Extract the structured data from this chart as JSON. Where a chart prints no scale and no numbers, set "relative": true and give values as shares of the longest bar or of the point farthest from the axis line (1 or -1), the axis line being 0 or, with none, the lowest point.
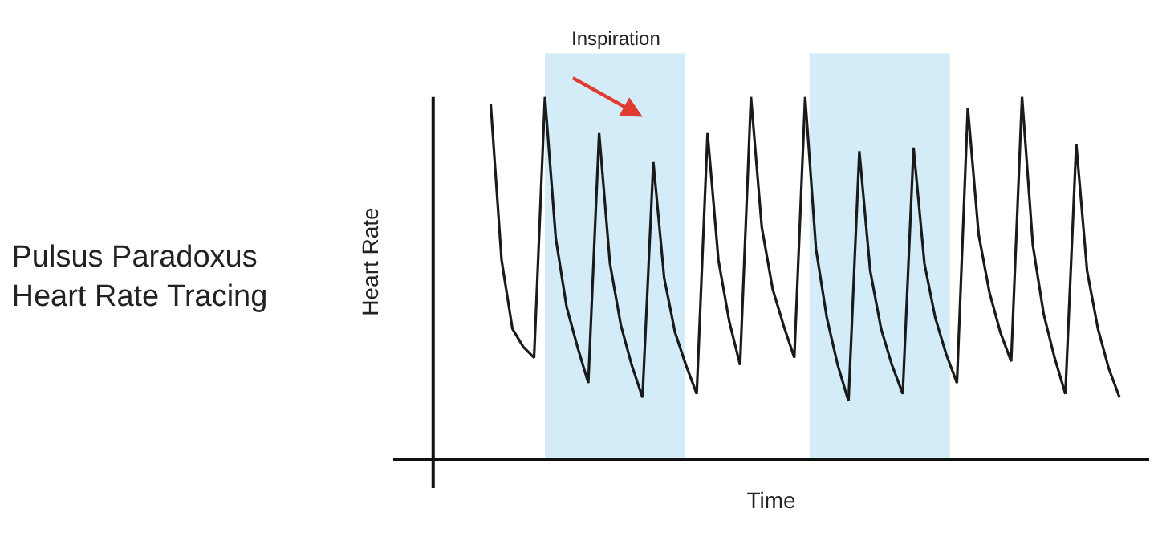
{
  "chart_data": {
    "type": "line",
    "relative": true,
    "title": "Pulsus Paradoxus\nHeart Rate Tracing",
    "xlabel": "Time",
    "ylabel": "Heart Rate",
    "categories": [
      null,
      null,
      null,
      null,
      null,
      null,
      null,
      null,
      null,
      null,
      null,
      null,
      null,
      null,
      null,
      null,
      null,
      null,
      null,
      null,
      null,
      null,
      null,
      null,
      null,
      null,
      null,
      null,
      null,
      null,
      null,
      null,
      null,
      null,
      null,
      null,
      null,
      null,
      null,
      null,
      null,
      null,
      null,
      null,
      null,
      null,
      null,
      null,
      null,
      null,
      null,
      null,
      null,
      null,
      null,
      null,
      null,
      null,
      null
    ],
    "annotations": [
      "Inspiration"
    ],
    "series": [
      {
        "color": "#1a1a1a",
        "values": [
          0.98,
          0.55,
          0.36,
          0.31,
          0.28,
          1.0,
          0.61,
          0.42,
          0.31,
          0.21,
          0.9,
          0.54,
          0.37,
          0.26,
          0.17,
          0.82,
          0.5,
          0.35,
          0.26,
          0.18,
          0.9,
          0.55,
          0.38,
          0.26,
          1.0,
          0.64,
          0.47,
          0.37,
          0.28,
          1.0,
          0.58,
          0.39,
          0.26,
          0.16,
          0.85,
          0.52,
          0.36,
          0.26,
          0.18,
          0.86,
          0.54,
          0.39,
          0.29,
          0.21,
          0.97,
          0.62,
          0.46,
          0.35,
          0.27,
          1.0,
          0.59,
          0.4,
          0.28,
          0.18,
          0.87,
          0.52,
          0.36,
          0.25,
          0.17
        ]
      }
    ],
    "grid": false,
    "marker": "none",
    "line_style": "solid"
  }
}
